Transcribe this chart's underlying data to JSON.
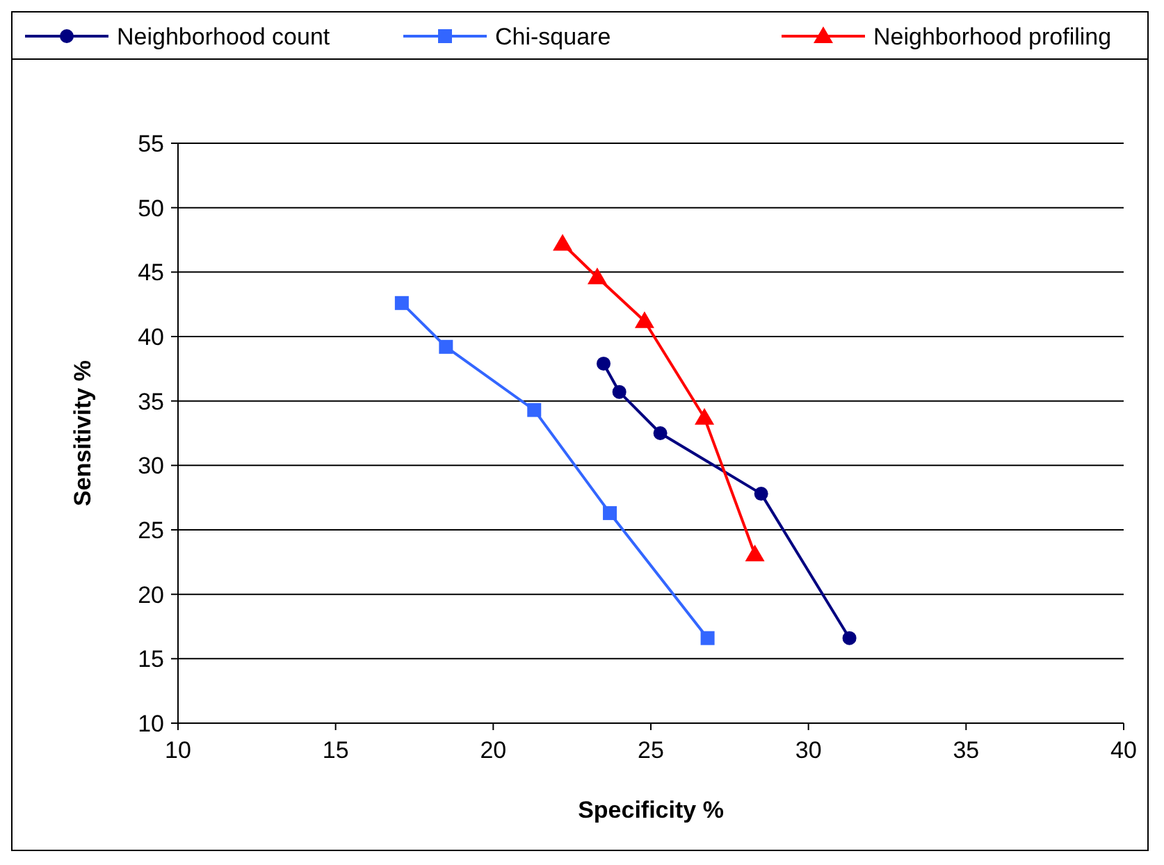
{
  "chart_data": {
    "type": "line",
    "xlabel": "Specificity %",
    "ylabel": "Sensitivity %",
    "xlim": [
      10,
      40
    ],
    "xticks": [
      10,
      15,
      20,
      25,
      30,
      35,
      40
    ],
    "ylim": [
      10,
      55
    ],
    "yticks": [
      10,
      15,
      20,
      25,
      30,
      35,
      40,
      45,
      50,
      55
    ],
    "grid": "y",
    "legend": "top",
    "series": [
      {
        "name": "Neighborhood count",
        "color": "#000080",
        "marker": "circle",
        "x": [
          23.5,
          24.0,
          25.3,
          28.5,
          31.3
        ],
        "values": [
          37.9,
          35.7,
          32.5,
          27.8,
          16.6
        ]
      },
      {
        "name": "Chi-square",
        "color": "#3366ff",
        "marker": "square",
        "x": [
          17.1,
          18.5,
          21.3,
          23.7,
          26.8
        ],
        "values": [
          42.6,
          39.2,
          34.3,
          26.3,
          16.6
        ]
      },
      {
        "name": "Neighborhood profiling",
        "color": "#ff0000",
        "marker": "triangle",
        "x": [
          22.2,
          23.3,
          24.8,
          26.7,
          28.3
        ],
        "values": [
          47.2,
          44.6,
          41.2,
          33.7,
          23.1
        ]
      }
    ]
  }
}
